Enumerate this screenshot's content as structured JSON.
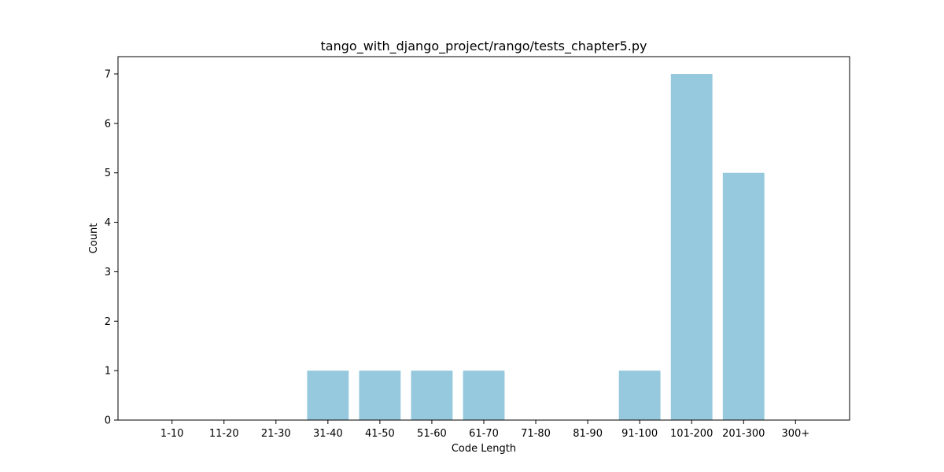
{
  "chart_data": {
    "type": "bar",
    "title": "tango_with_django_project/rango/tests_chapter5.py",
    "xlabel": "Code Length",
    "ylabel": "Count",
    "categories": [
      "1-10",
      "11-20",
      "21-30",
      "31-40",
      "41-50",
      "51-60",
      "61-70",
      "71-80",
      "81-90",
      "91-100",
      "101-200",
      "201-300",
      "300+"
    ],
    "values": [
      0,
      0,
      0,
      1,
      1,
      1,
      1,
      0,
      0,
      1,
      7,
      5,
      0
    ],
    "ylim": [
      0,
      7.35
    ],
    "yticks": [
      0,
      1,
      2,
      3,
      4,
      5,
      6,
      7
    ],
    "bar_color": "#96c9dd",
    "grid": false,
    "legend": "none"
  }
}
